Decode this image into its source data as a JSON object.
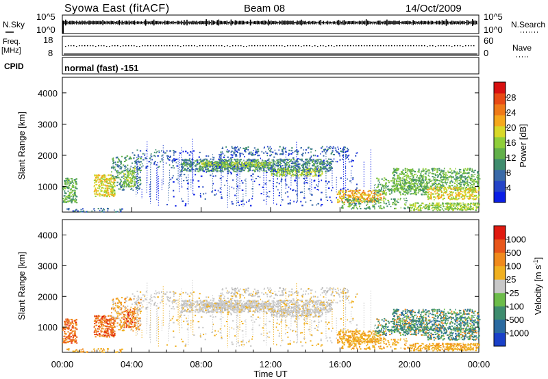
{
  "header": {
    "station": "Syowa East (fitACF)",
    "beam": "Beam 08",
    "date": "14/Oct/2009"
  },
  "top_panels": {
    "nsky_label": "N.Sky",
    "nsky_ticks": [
      "10^5",
      "10^0"
    ],
    "nsearch_label": "N.Search",
    "nsearch_ticks": [
      "10^5",
      "10^0"
    ],
    "freq_label_1": "Freq.",
    "freq_label_2": "[MHz]",
    "freq_ticks": [
      "18",
      "8"
    ],
    "nave_label": "Nave",
    "nave_ticks": [
      "60",
      "0"
    ],
    "cpid_label": "CPID",
    "mode_text": "normal (fast) -151"
  },
  "chart_data": [
    {
      "type": "heatmap",
      "name": "power",
      "ylabel": "Slant Range [km]",
      "ylim": [
        180,
        4500
      ],
      "yticks": [
        1000,
        2000,
        3000,
        4000
      ],
      "xlim_hours": [
        0,
        24
      ],
      "colorbar_label": "Power [dB]",
      "colorbar_range": [
        0,
        32
      ],
      "colorbar_ticks": [
        4,
        8,
        12,
        16,
        20,
        24,
        28
      ],
      "colorbar_colors": [
        "#0a1ee6",
        "#2444c8",
        "#3a6aa8",
        "#3f8c6e",
        "#62b04a",
        "#8fce3a",
        "#d8d828",
        "#f5a81c",
        "#ef7a18",
        "#e84a14",
        "#d81010"
      ]
    },
    {
      "type": "heatmap",
      "name": "velocity",
      "ylabel": "Slant Range [km]",
      "ylim": [
        180,
        4500
      ],
      "yticks": [
        1000,
        2000,
        3000,
        4000
      ],
      "xlim_hours": [
        0,
        24
      ],
      "colorbar_label": "Velocity [m s^-1]",
      "colorbar_ticks": [
        "1000",
        "500",
        "100",
        "25",
        "-25",
        "-100",
        "-500",
        "-1000"
      ],
      "colorbar_colors": [
        "#1a40c8",
        "#2a6aa0",
        "#3e8c6e",
        "#6cbc4a",
        "#c8c8c8",
        "#f0b020",
        "#f08a1c",
        "#e8561a",
        "#e01a10"
      ]
    }
  ],
  "time_axis": {
    "ticks": [
      "00:00",
      "04:00",
      "08:00",
      "12:00",
      "16:00",
      "20:00",
      "00:00"
    ],
    "label": "Time UT"
  }
}
